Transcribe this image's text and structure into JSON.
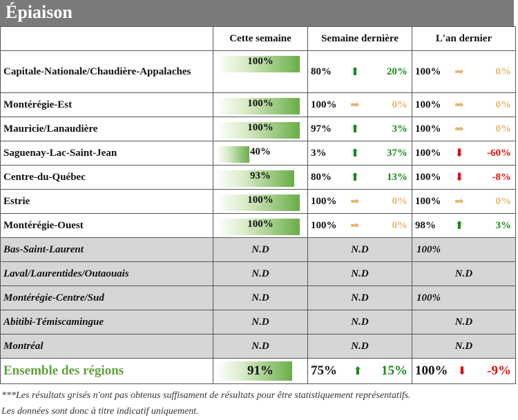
{
  "title": "Épiaison",
  "headers": [
    "",
    "Cette semaine",
    "Semaine dernière",
    "L'an dernier"
  ],
  "rows": [
    {
      "name": "Capitale-Nationale/Chaudière-Appalaches",
      "week": "100%",
      "fill": 1.0,
      "lw": "80%",
      "lw_dir": "up",
      "lw_diff": "20%",
      "ly": "100%",
      "ly_dir": "flat",
      "ly_diff": "0%"
    },
    {
      "name": "Montérégie-Est",
      "week": "100%",
      "fill": 1.0,
      "lw": "100%",
      "lw_dir": "flat",
      "lw_diff": "0%",
      "ly": "100%",
      "ly_dir": "flat",
      "ly_diff": "0%"
    },
    {
      "name": "Mauricie/Lanaudière",
      "week": "100%",
      "fill": 1.0,
      "lw": "97%",
      "lw_dir": "up",
      "lw_diff": "3%",
      "ly": "100%",
      "ly_dir": "flat",
      "ly_diff": "0%"
    },
    {
      "name": "Saguenay-Lac-Saint-Jean",
      "week": "40%",
      "fill": 0.4,
      "lw": "3%",
      "lw_dir": "up",
      "lw_diff": "37%",
      "ly": "100%",
      "ly_dir": "down",
      "ly_diff": "-60%"
    },
    {
      "name": "Centre-du-Québec",
      "week": "93%",
      "fill": 0.93,
      "lw": "80%",
      "lw_dir": "up",
      "lw_diff": "13%",
      "ly": "100%",
      "ly_dir": "down",
      "ly_diff": "-8%"
    },
    {
      "name": "Estrie",
      "week": "100%",
      "fill": 1.0,
      "lw": "100%",
      "lw_dir": "flat",
      "lw_diff": "0%",
      "ly": "100%",
      "ly_dir": "flat",
      "ly_diff": "0%"
    },
    {
      "name": "Montérégie-Ouest",
      "week": "100%",
      "fill": 1.0,
      "lw": "100%",
      "lw_dir": "flat",
      "lw_diff": "0%",
      "ly": "98%",
      "ly_dir": "up",
      "ly_diff": "3%"
    }
  ],
  "gray_rows": [
    {
      "name": "Bas-Saint-Laurent",
      "week": "N.D",
      "lw": "N.D",
      "ly": "100%",
      "ly_align": "left"
    },
    {
      "name": "Laval/Laurentides/Outaouais",
      "week": "N.D",
      "lw": "N.D",
      "ly": "N.D",
      "ly_align": "center"
    },
    {
      "name": "Montérégie-Centre/Sud",
      "week": "N.D",
      "lw": "N.D",
      "ly": "100%",
      "ly_align": "left"
    },
    {
      "name": "Abitibi-Témiscamingue",
      "week": "N.D",
      "lw": "N.D",
      "ly": "N.D",
      "ly_align": "center"
    },
    {
      "name": "Montréal",
      "week": "N.D",
      "lw": "N.D",
      "ly": "N.D",
      "ly_align": "center"
    }
  ],
  "total": {
    "name": "Ensemble des régions",
    "week": "91%",
    "fill": 0.91,
    "lw": "75%",
    "lw_dir": "up",
    "lw_diff": "15%",
    "ly": "100%",
    "ly_dir": "down",
    "ly_diff": "-9%"
  },
  "note_1": "***Les résultats grisés n'ont pas obtenus suffisament de résultats pour être statistiquement représentatifs.",
  "note_2": "Les données sont donc à titre indicatif uniquement.",
  "colors": {
    "up": "#1a8a1a",
    "flat": "#e5b872",
    "down": "#e01010",
    "bar": "#6aae47",
    "gray": "#d6d6d6",
    "total_label": "#5f9f3a"
  },
  "icons": {
    "up": "arrow-up-icon",
    "flat": "arrow-right-icon",
    "down": "arrow-down-icon"
  }
}
